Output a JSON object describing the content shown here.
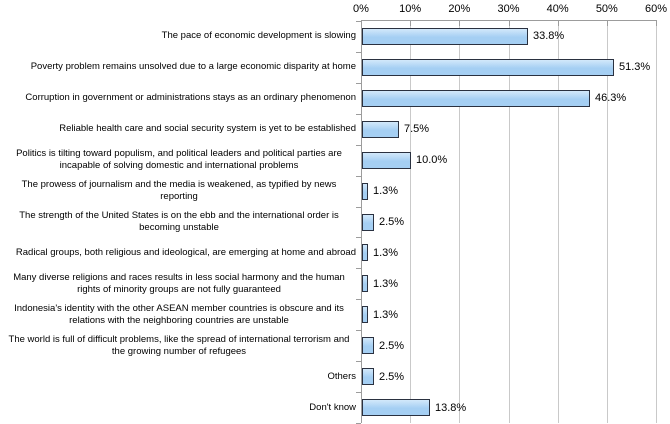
{
  "chart_data": {
    "type": "bar",
    "orientation": "horizontal",
    "title": "",
    "categories": [
      "The pace of economic development is slowing",
      "Poverty problem remains unsolved due to a large economic disparity at home",
      "Corruption in government or administrations stays as an ordinary phenomenon",
      "Reliable health care and social security system is yet to be established",
      "Politics is tilting toward populism, and political leaders and political parties are incapable of solving domestic and international problems",
      "The prowess of journalism and the media is weakened, as typified by news reporting",
      "The strength of the United States is on the ebb and the international order is becoming unstable",
      "Radical groups, both religious and ideological, are emerging at home and abroad",
      "Many diverse religions and races results in less social harmony and the human rights of minority groups are not fully guaranteed",
      "Indonesia's identity with the other ASEAN member countries is obscure and its relations with the neighboring countries are unstable",
      "The world is full of difficult problems, like the spread of international terrorism and the growing number of refugees",
      "Others",
      "Don't know"
    ],
    "values": [
      33.8,
      51.3,
      46.3,
      7.5,
      10.0,
      1.3,
      2.5,
      1.3,
      1.3,
      1.3,
      2.5,
      2.5,
      13.8
    ],
    "value_labels": [
      "33.8%",
      "51.3%",
      "46.3%",
      "7.5%",
      "10.0%",
      "1.3%",
      "2.5%",
      "1.3%",
      "1.3%",
      "1.3%",
      "2.5%",
      "2.5%",
      "13.8%"
    ],
    "xlabel": "",
    "ylabel": "",
    "axis": {
      "position": "top",
      "min": 0,
      "max": 60,
      "tick_values": [
        0,
        10,
        20,
        30,
        40,
        50,
        60
      ],
      "tick_labels": [
        "0%",
        "10%",
        "20%",
        "30%",
        "40%",
        "50%",
        "60%"
      ]
    },
    "grid": true,
    "legend": false
  },
  "colors": {
    "bar_fill": "#A5CFF3",
    "bar_fill_highlight": "#D3E8FB",
    "bar_border": "#2A3140",
    "gridline": "#C9C9C9",
    "axis_line": "#9C9C9C",
    "text": "#000000",
    "background": "#FFFFFF"
  }
}
